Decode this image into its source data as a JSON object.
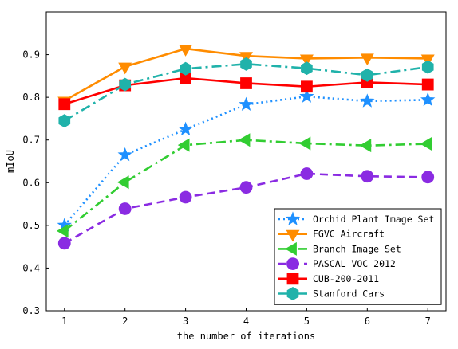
{
  "chart_data": {
    "type": "line",
    "xlabel": "the number of iterations",
    "ylabel": "mIoU",
    "x": [
      1,
      2,
      3,
      4,
      5,
      6,
      7
    ],
    "xticks": [
      "1",
      "2",
      "3",
      "4",
      "5",
      "6",
      "7"
    ],
    "yticks": [
      "0.3",
      "0.4",
      "0.5",
      "0.6",
      "0.7",
      "0.8",
      "0.9"
    ],
    "xlim": [
      0.7,
      7.3
    ],
    "ylim": [
      0.3,
      1.0
    ],
    "grid": false,
    "legend_position": "bottom-right",
    "series": [
      {
        "name": "Orchid Plant Image Set",
        "values": [
          0.5,
          0.665,
          0.725,
          0.783,
          0.802,
          0.791,
          0.794
        ],
        "color": "#1e90ff",
        "line": "dotted",
        "marker": "star"
      },
      {
        "name": "FGVC Aircraft",
        "values": [
          0.792,
          0.872,
          0.914,
          0.897,
          0.891,
          0.893,
          0.891
        ],
        "color": "#ff8c00",
        "line": "solid",
        "marker": "triangle-down"
      },
      {
        "name": "Branch Image Set",
        "values": [
          0.487,
          0.601,
          0.688,
          0.7,
          0.692,
          0.687,
          0.691
        ],
        "color": "#32cd32",
        "line": "dashdot",
        "marker": "triangle-left"
      },
      {
        "name": "PASCAL VOC 2012",
        "values": [
          0.458,
          0.539,
          0.566,
          0.589,
          0.621,
          0.615,
          0.613
        ],
        "color": "#8a2be2",
        "line": "dashed",
        "marker": "circle"
      },
      {
        "name": "CUB-200-2011",
        "values": [
          0.784,
          0.828,
          0.845,
          0.833,
          0.825,
          0.835,
          0.83
        ],
        "color": "#ff0000",
        "line": "solid",
        "marker": "square"
      },
      {
        "name": "Stanford Cars",
        "values": [
          0.745,
          0.83,
          0.867,
          0.878,
          0.868,
          0.852,
          0.871
        ],
        "color": "#20b2aa",
        "line": "dashdot",
        "marker": "hexagon"
      }
    ]
  }
}
